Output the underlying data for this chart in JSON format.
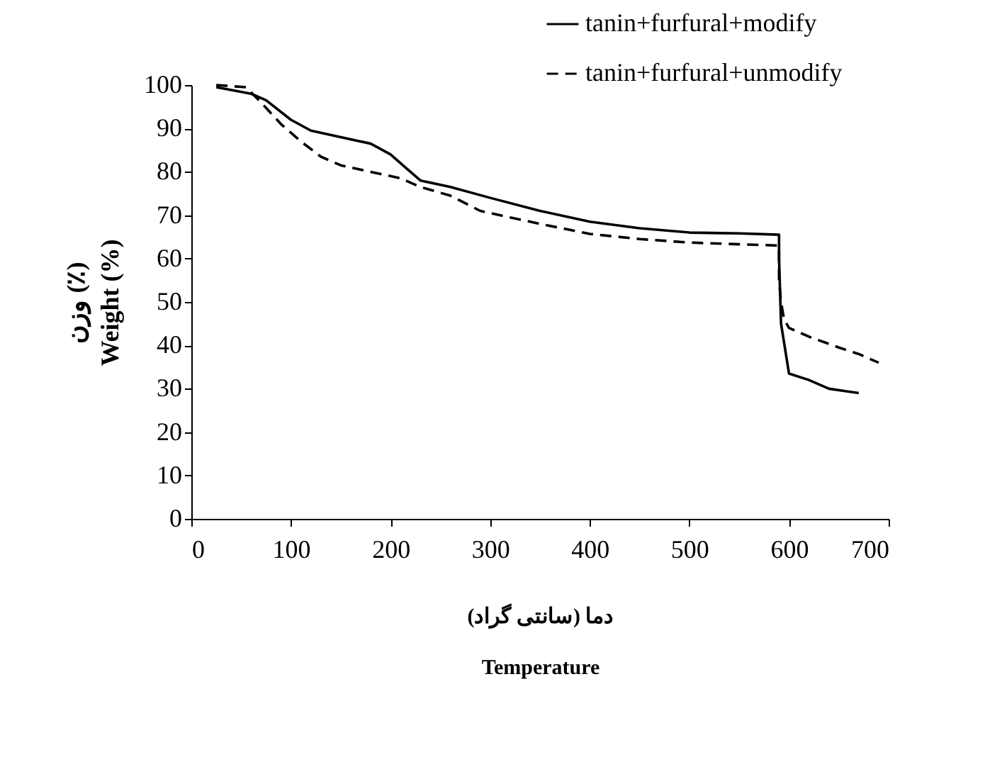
{
  "chart_data": {
    "type": "line",
    "xlabel": "دما (سانتی گراد)\nTemperature",
    "ylabel": "وزن (٪)\nWeight (%)",
    "xlim": [
      0,
      700
    ],
    "xticks": [
      0,
      100,
      200,
      300,
      400,
      500,
      600,
      700
    ],
    "ylim": [
      0,
      100
    ],
    "yticks": [
      0,
      10,
      20,
      30,
      40,
      50,
      60,
      70,
      80,
      90,
      100
    ],
    "legend": "top right",
    "series": [
      {
        "name": "tanin+furfural+modify",
        "color": "#000000",
        "line_style": "solid",
        "x": [
          25,
          60,
          75,
          100,
          120,
          150,
          180,
          200,
          215,
          230,
          260,
          300,
          350,
          400,
          450,
          500,
          550,
          590,
          590,
          592,
          600,
          620,
          640,
          655,
          670
        ],
        "values": [
          99.5,
          98,
          96.5,
          92,
          89.5,
          88,
          86.5,
          84,
          81,
          78,
          76.5,
          74,
          71,
          68.5,
          67,
          66,
          65.8,
          65.5,
          60,
          45,
          33.5,
          32,
          30,
          29.5,
          29
        ]
      },
      {
        "name": "tanin+furfural+unmodify",
        "color": "#000000",
        "line_style": "dashed",
        "x": [
          25,
          55,
          70,
          90,
          110,
          130,
          150,
          180,
          210,
          230,
          260,
          290,
          320,
          350,
          400,
          450,
          500,
          550,
          590,
          590,
          592,
          595,
          600,
          620,
          650,
          670,
          690
        ],
        "values": [
          100,
          99.5,
          96,
          91,
          87,
          83.5,
          81.5,
          80,
          78.5,
          76.5,
          74.5,
          71,
          69.5,
          68,
          65.7,
          64.5,
          63.7,
          63.3,
          63,
          55,
          50,
          46,
          44,
          42,
          39.5,
          38,
          36
        ]
      }
    ]
  }
}
